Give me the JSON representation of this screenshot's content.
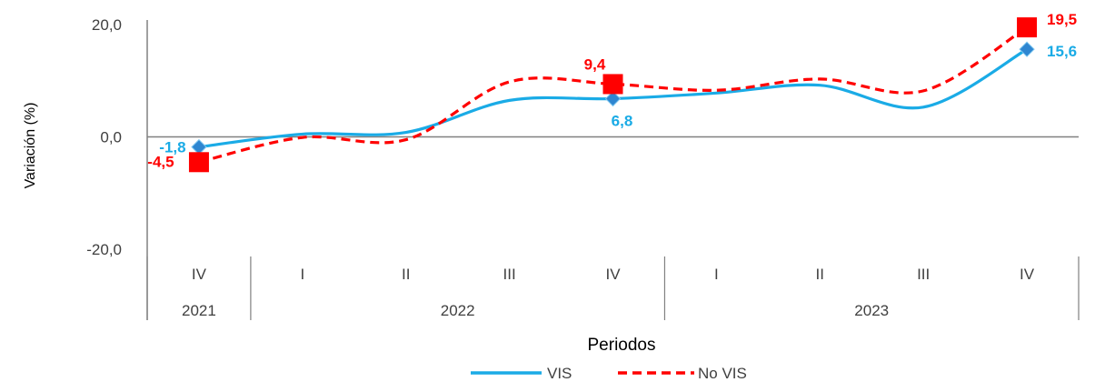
{
  "chart_data": {
    "type": "line",
    "xlabel": "Periodos",
    "ylabel": "Variación (%)",
    "ylim": [
      -20,
      20
    ],
    "yticks": [
      "20,0",
      "0,0",
      "-20,0"
    ],
    "ytick_values": [
      20,
      0,
      -20
    ],
    "categories": [
      "IV",
      "I",
      "II",
      "III",
      "IV",
      "I",
      "II",
      "III",
      "IV"
    ],
    "year_groups": [
      {
        "label": "2021",
        "start": 0,
        "end": 0
      },
      {
        "label": "2022",
        "start": 1,
        "end": 4
      },
      {
        "label": "2023",
        "start": 5,
        "end": 8
      }
    ],
    "series": [
      {
        "name": "VIS",
        "color": "#1aabe6",
        "marker": "diamond",
        "marker_color": "#2e86d1",
        "values": [
          -1.8,
          0.5,
          0.8,
          6.5,
          6.8,
          7.8,
          9.2,
          5.3,
          15.6
        ],
        "labels": [
          {
            "index": 0,
            "text": "-1,8"
          },
          {
            "index": 4,
            "text": "6,8"
          },
          {
            "index": 8,
            "text": "15,6"
          }
        ]
      },
      {
        "name": "No VIS",
        "color": "#ff0000",
        "marker": "square",
        "marker_color": "#ff0000",
        "values": [
          -4.5,
          -0.1,
          -0.5,
          9.8,
          9.4,
          8.3,
          10.3,
          8.2,
          19.5
        ],
        "labels": [
          {
            "index": 0,
            "text": "-4,5"
          },
          {
            "index": 4,
            "text": "9,4"
          },
          {
            "index": 8,
            "text": "19,5"
          }
        ]
      }
    ],
    "legend": [
      "VIS",
      "No VIS"
    ],
    "legend_position": "bottom",
    "grid": false
  }
}
